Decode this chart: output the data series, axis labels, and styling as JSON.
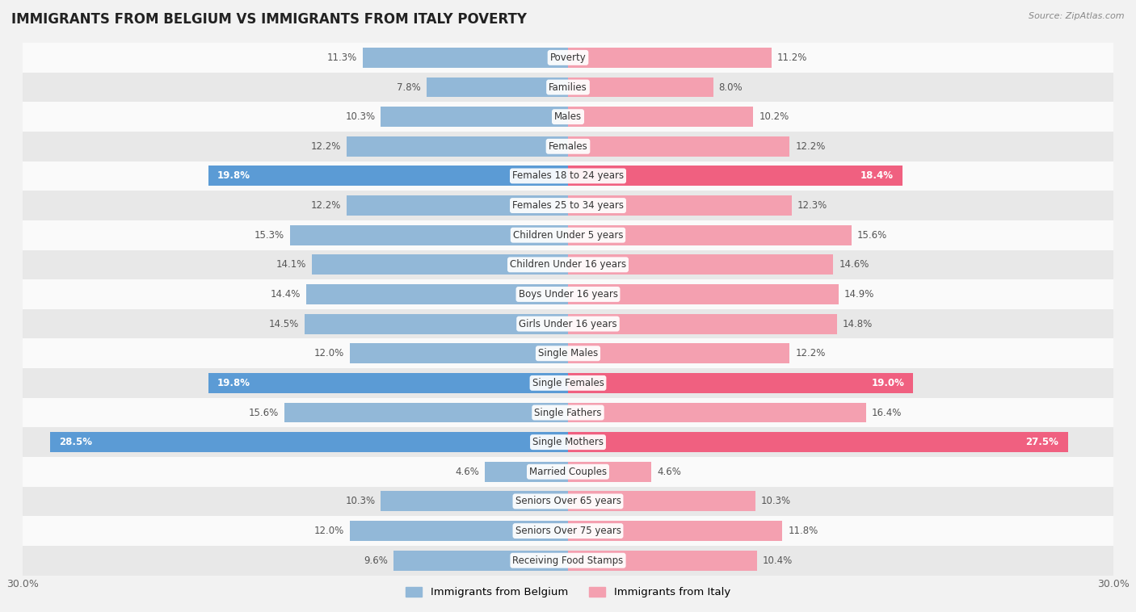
{
  "title": "IMMIGRANTS FROM BELGIUM VS IMMIGRANTS FROM ITALY POVERTY",
  "source": "Source: ZipAtlas.com",
  "categories": [
    "Poverty",
    "Families",
    "Males",
    "Females",
    "Females 18 to 24 years",
    "Females 25 to 34 years",
    "Children Under 5 years",
    "Children Under 16 years",
    "Boys Under 16 years",
    "Girls Under 16 years",
    "Single Males",
    "Single Females",
    "Single Fathers",
    "Single Mothers",
    "Married Couples",
    "Seniors Over 65 years",
    "Seniors Over 75 years",
    "Receiving Food Stamps"
  ],
  "belgium_values": [
    11.3,
    7.8,
    10.3,
    12.2,
    19.8,
    12.2,
    15.3,
    14.1,
    14.4,
    14.5,
    12.0,
    19.8,
    15.6,
    28.5,
    4.6,
    10.3,
    12.0,
    9.6
  ],
  "italy_values": [
    11.2,
    8.0,
    10.2,
    12.2,
    18.4,
    12.3,
    15.6,
    14.6,
    14.9,
    14.8,
    12.2,
    19.0,
    16.4,
    27.5,
    4.6,
    10.3,
    11.8,
    10.4
  ],
  "belgium_color": "#92b8d8",
  "italy_color": "#f4a0b0",
  "belgium_highlight_color": "#5b9bd5",
  "italy_highlight_color": "#f06080",
  "highlight_indices": [
    4,
    11,
    13
  ],
  "background_color": "#f2f2f2",
  "row_color_light": "#fafafa",
  "row_color_dark": "#e8e8e8",
  "axis_max": 30.0,
  "legend_belgium": "Immigrants from Belgium",
  "legend_italy": "Immigrants from Italy",
  "bar_height": 0.68
}
